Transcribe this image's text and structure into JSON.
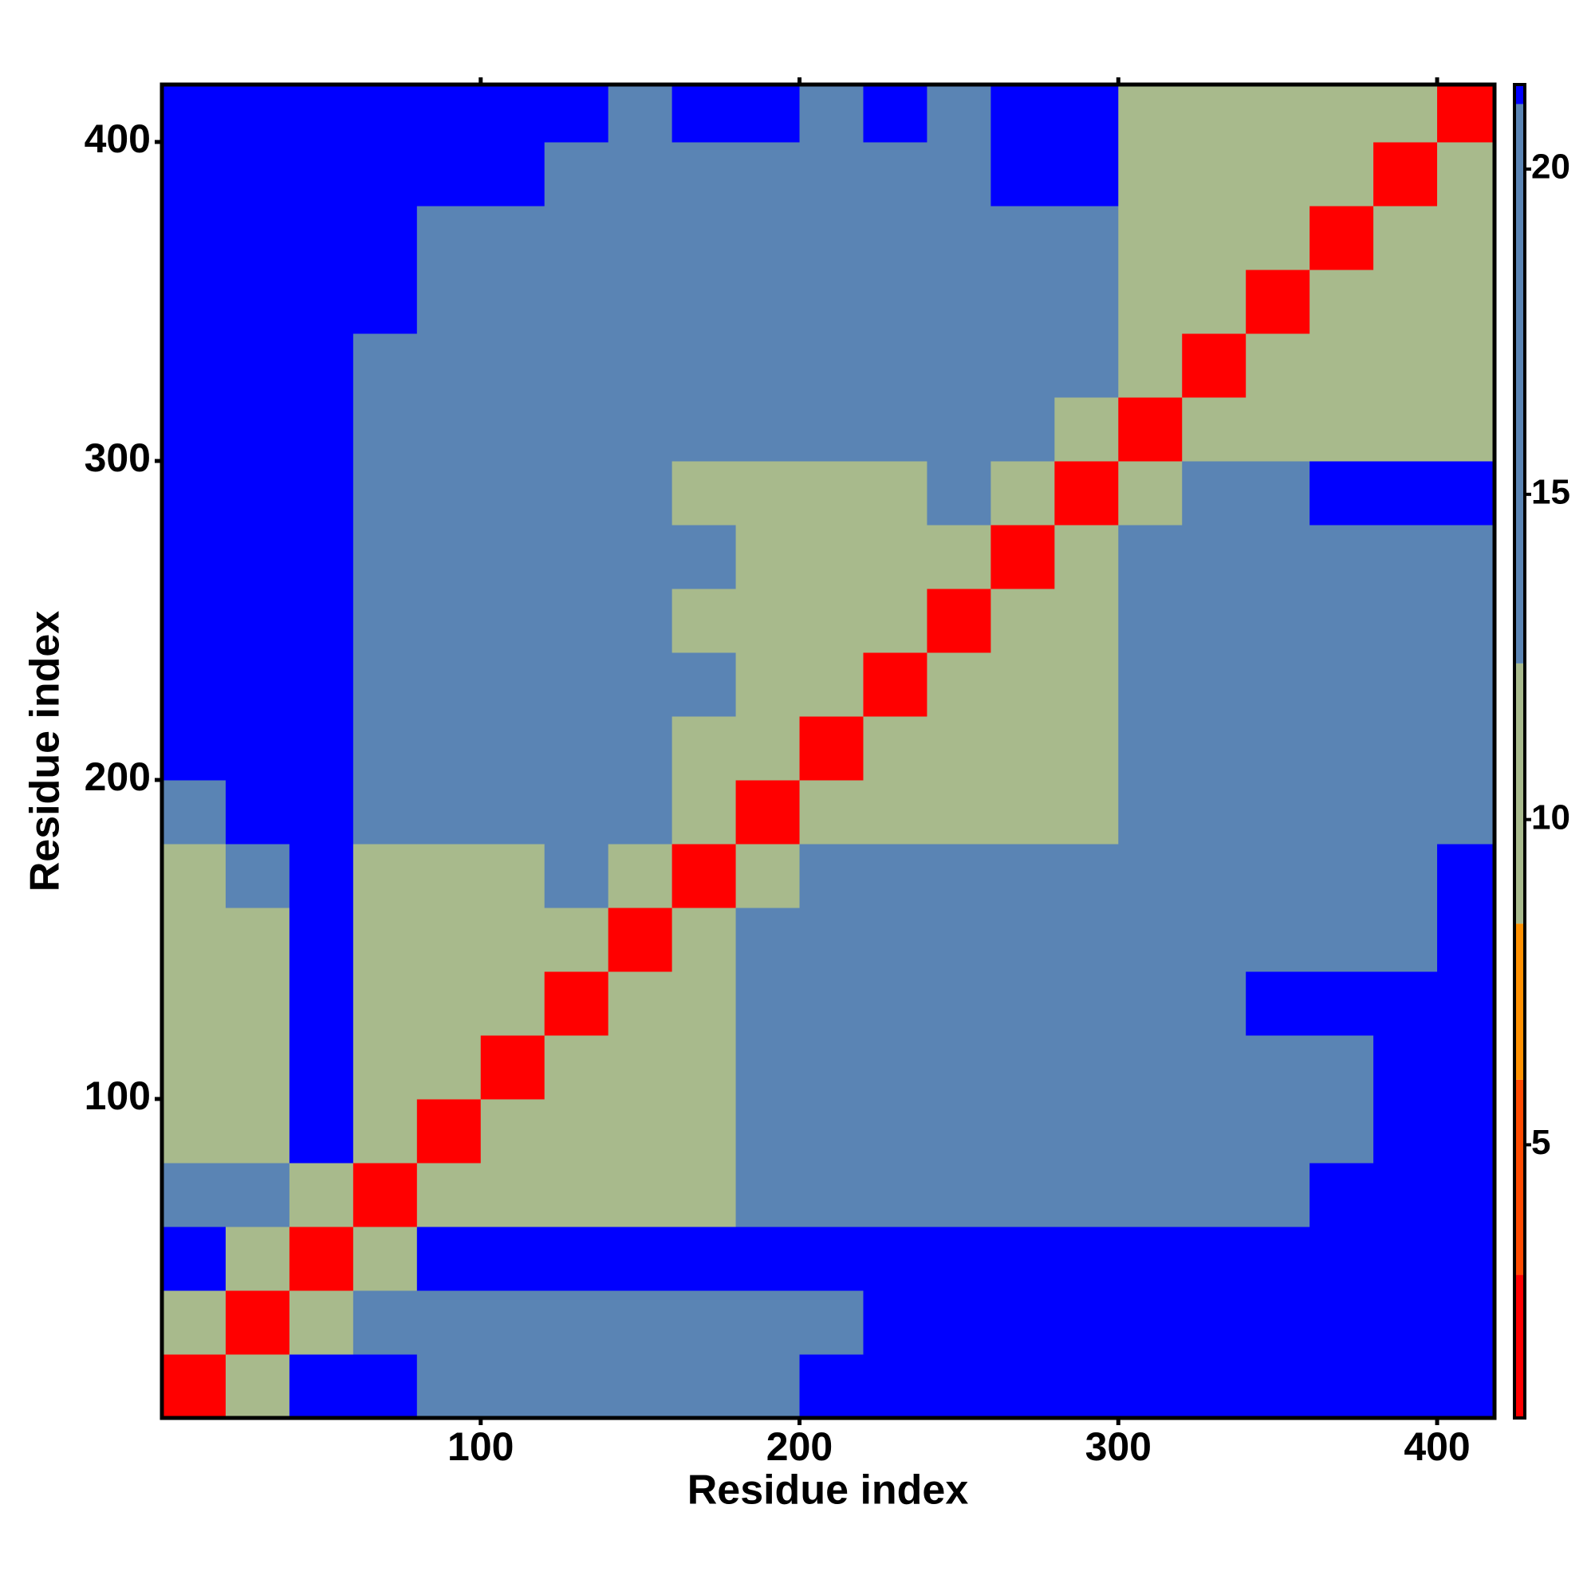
{
  "chart_data": {
    "type": "heatmap",
    "x_label": "Residue index",
    "y_label": "Residue index",
    "xlim": [
      0,
      418
    ],
    "ylim": [
      0,
      418
    ],
    "xticks": [
      100,
      200,
      300,
      400
    ],
    "yticks": [
      100,
      200,
      300,
      400
    ],
    "x_edges": [
      0,
      20,
      40,
      60,
      80,
      100,
      120,
      140,
      160,
      180,
      200,
      220,
      240,
      260,
      280,
      300,
      320,
      340,
      360,
      380,
      400,
      420
    ],
    "y_edges": [
      0,
      20,
      40,
      60,
      80,
      100,
      120,
      140,
      160,
      180,
      200,
      220,
      240,
      260,
      280,
      300,
      320,
      340,
      360,
      380,
      400,
      420
    ],
    "z": [
      [
        2,
        11,
        24,
        24,
        20,
        20,
        20,
        20,
        20,
        20,
        24,
        24,
        24,
        24,
        24,
        24,
        24,
        24,
        24,
        24,
        24
      ],
      [
        11,
        2,
        11,
        20,
        20,
        20,
        20,
        20,
        20,
        20,
        20,
        24,
        24,
        24,
        24,
        24,
        24,
        24,
        24,
        24,
        24
      ],
      [
        24,
        11,
        2,
        11,
        24,
        24,
        24,
        24,
        24,
        24,
        24,
        24,
        24,
        24,
        24,
        24,
        24,
        24,
        24,
        24,
        24
      ],
      [
        20,
        20,
        11,
        2,
        11,
        11,
        11,
        11,
        11,
        17,
        17,
        17,
        17,
        17,
        17,
        20,
        20,
        20,
        24,
        24,
        24
      ],
      [
        11,
        11,
        24,
        11,
        2,
        11,
        11,
        11,
        11,
        17,
        17,
        17,
        17,
        17,
        17,
        20,
        20,
        20,
        20,
        24,
        24
      ],
      [
        11,
        11,
        24,
        11,
        11,
        2,
        11,
        11,
        11,
        17,
        17,
        17,
        17,
        17,
        17,
        20,
        20,
        20,
        20,
        24,
        24
      ],
      [
        11,
        11,
        24,
        11,
        11,
        11,
        2,
        11,
        11,
        17,
        17,
        17,
        17,
        17,
        17,
        20,
        20,
        24,
        24,
        24,
        24
      ],
      [
        11,
        11,
        24,
        11,
        11,
        11,
        11,
        2,
        11,
        17,
        17,
        17,
        17,
        17,
        17,
        17,
        20,
        20,
        20,
        20,
        24
      ],
      [
        11,
        20,
        24,
        11,
        11,
        11,
        17,
        11,
        2,
        11,
        17,
        17,
        17,
        17,
        17,
        17,
        20,
        20,
        20,
        20,
        24
      ],
      [
        20,
        24,
        24,
        17,
        17,
        17,
        17,
        17,
        11,
        2,
        11,
        11,
        11,
        11,
        11,
        17,
        17,
        17,
        17,
        17,
        20
      ],
      [
        24,
        24,
        24,
        17,
        17,
        17,
        17,
        17,
        11,
        11,
        2,
        11,
        11,
        11,
        11,
        17,
        17,
        17,
        17,
        17,
        17
      ],
      [
        24,
        24,
        24,
        17,
        17,
        17,
        17,
        17,
        17,
        11,
        11,
        2,
        11,
        11,
        11,
        17,
        20,
        20,
        20,
        20,
        20
      ],
      [
        24,
        24,
        24,
        17,
        17,
        17,
        17,
        17,
        11,
        11,
        11,
        11,
        2,
        11,
        11,
        17,
        17,
        17,
        17,
        17,
        20
      ],
      [
        24,
        24,
        24,
        17,
        17,
        17,
        17,
        17,
        17,
        11,
        11,
        11,
        11,
        2,
        11,
        17,
        20,
        20,
        20,
        20,
        20
      ],
      [
        24,
        24,
        24,
        20,
        17,
        17,
        17,
        17,
        11,
        11,
        11,
        11,
        17,
        11,
        2,
        11,
        20,
        20,
        24,
        24,
        24
      ],
      [
        24,
        24,
        24,
        20,
        20,
        17,
        17,
        17,
        17,
        17,
        17,
        17,
        17,
        17,
        11,
        2,
        11,
        11,
        11,
        11,
        11
      ],
      [
        24,
        24,
        24,
        20,
        20,
        20,
        17,
        17,
        17,
        17,
        17,
        17,
        17,
        17,
        17,
        11,
        2,
        11,
        11,
        11,
        11
      ],
      [
        24,
        24,
        24,
        24,
        20,
        20,
        20,
        17,
        17,
        17,
        20,
        17,
        17,
        17,
        17,
        11,
        11,
        2,
        11,
        11,
        11
      ],
      [
        24,
        24,
        24,
        24,
        20,
        20,
        20,
        20,
        17,
        17,
        20,
        20,
        20,
        20,
        20,
        11,
        11,
        11,
        2,
        11,
        11
      ],
      [
        24,
        24,
        24,
        24,
        24,
        24,
        20,
        20,
        20,
        20,
        20,
        20,
        20,
        24,
        24,
        11,
        11,
        11,
        11,
        2,
        11
      ],
      [
        24,
        24,
        24,
        24,
        24,
        24,
        24,
        20,
        24,
        24,
        20,
        24,
        20,
        24,
        24,
        11,
        11,
        11,
        11,
        11,
        2
      ]
    ],
    "clim": [
      0.8,
      21.3
    ],
    "colorbar_ticks": [
      5,
      10,
      15,
      20
    ],
    "color_levels": [
      [
        0.8,
        "#ff0000"
      ],
      [
        3,
        "#ff4a00"
      ],
      [
        6,
        "#ff9000"
      ],
      [
        8.4,
        "#a8ba8c"
      ],
      [
        12.4,
        "#5a84b4"
      ],
      [
        21,
        "#0000ff"
      ]
    ]
  }
}
